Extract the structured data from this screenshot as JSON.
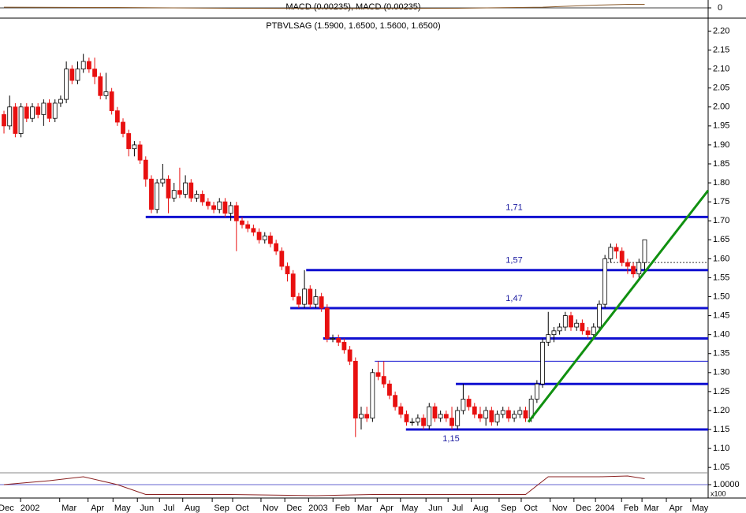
{
  "chart_data": [
    {
      "type": "line",
      "title": "MACD (0.00235), MACD (0.00235)",
      "x": [
        0,
        20,
        40,
        60,
        80,
        95,
        100,
        105,
        110,
        113
      ],
      "values": [
        0.2,
        0.1,
        -0.1,
        -0.2,
        -0.1,
        0.2,
        0.5,
        0.8,
        1.0,
        1.0
      ],
      "color": "#8a5a2a",
      "ylim": [
        -2,
        2
      ],
      "yticks": [
        0
      ]
    },
    {
      "type": "candlestick",
      "title": "PTBVLSAG (1.5900, 1.6500, 1.5600, 1.6500)",
      "open": [
        1.98,
        1.95,
        2.0,
        1.93,
        2.0,
        1.97,
        2.0,
        1.98,
        2.01,
        1.97,
        2.01,
        2.02,
        2.1,
        2.07,
        2.1,
        2.12,
        2.1,
        2.08,
        2.03,
        2.04,
        1.99,
        1.96,
        1.93,
        1.89,
        1.9,
        1.86,
        1.81,
        1.73,
        1.8,
        1.81,
        1.76,
        1.78,
        1.77,
        1.8,
        1.76,
        1.77,
        1.75,
        1.74,
        1.73,
        1.75,
        1.72,
        1.74,
        1.7,
        1.69,
        1.68,
        1.67,
        1.65,
        1.66,
        1.64,
        1.62,
        1.58,
        1.56,
        1.5,
        1.48,
        1.52,
        1.48,
        1.5,
        1.47,
        1.39,
        1.39,
        1.38,
        1.36,
        1.33,
        1.18,
        1.19,
        1.18,
        1.3,
        1.29,
        1.27,
        1.24,
        1.21,
        1.19,
        1.17,
        1.17,
        1.18,
        1.16,
        1.21,
        1.18,
        1.19,
        1.18,
        1.16,
        1.2,
        1.23,
        1.21,
        1.19,
        1.18,
        1.2,
        1.17,
        1.19,
        1.2,
        1.18,
        1.19,
        1.2,
        1.18,
        1.23,
        1.27,
        1.38,
        1.4,
        1.41,
        1.42,
        1.45,
        1.42,
        1.43,
        1.41,
        1.4,
        1.42,
        1.48,
        1.6,
        1.63,
        1.62,
        1.59,
        1.58,
        1.56,
        1.59
      ],
      "high": [
        1.99,
        2.03,
        2.01,
        2.01,
        2.01,
        2.01,
        2.01,
        2.02,
        2.02,
        2.02,
        2.03,
        2.12,
        2.11,
        2.12,
        2.14,
        2.13,
        2.13,
        2.09,
        2.09,
        2.05,
        2.0,
        1.97,
        1.94,
        1.91,
        1.91,
        1.87,
        1.82,
        1.81,
        1.85,
        1.82,
        1.8,
        1.84,
        1.82,
        1.81,
        1.78,
        1.78,
        1.76,
        1.75,
        1.76,
        1.76,
        1.75,
        1.75,
        1.71,
        1.7,
        1.69,
        1.68,
        1.67,
        1.67,
        1.65,
        1.63,
        1.59,
        1.57,
        1.51,
        1.57,
        1.53,
        1.52,
        1.51,
        1.48,
        1.4,
        1.4,
        1.39,
        1.37,
        1.34,
        1.21,
        1.21,
        1.31,
        1.33,
        1.33,
        1.28,
        1.25,
        1.22,
        1.2,
        1.18,
        1.19,
        1.19,
        1.22,
        1.22,
        1.2,
        1.2,
        1.21,
        1.21,
        1.27,
        1.24,
        1.22,
        1.21,
        1.21,
        1.21,
        1.2,
        1.21,
        1.21,
        1.2,
        1.21,
        1.21,
        1.24,
        1.28,
        1.39,
        1.46,
        1.42,
        1.43,
        1.46,
        1.46,
        1.44,
        1.44,
        1.42,
        1.43,
        1.49,
        1.61,
        1.64,
        1.64,
        1.63,
        1.6,
        1.59,
        1.6,
        1.65
      ],
      "low": [
        1.93,
        1.94,
        1.92,
        1.92,
        1.96,
        1.96,
        1.97,
        1.95,
        1.96,
        1.96,
        2.0,
        2.01,
        2.06,
        2.06,
        2.09,
        2.09,
        2.06,
        2.02,
        2.02,
        1.98,
        1.95,
        1.92,
        1.87,
        1.87,
        1.85,
        1.79,
        1.72,
        1.72,
        1.79,
        1.72,
        1.75,
        1.76,
        1.76,
        1.75,
        1.75,
        1.74,
        1.73,
        1.72,
        1.72,
        1.71,
        1.7,
        1.62,
        1.68,
        1.67,
        1.66,
        1.64,
        1.64,
        1.63,
        1.61,
        1.57,
        1.54,
        1.49,
        1.47,
        1.47,
        1.47,
        1.47,
        1.46,
        1.38,
        1.38,
        1.37,
        1.35,
        1.32,
        1.13,
        1.15,
        1.17,
        1.17,
        1.28,
        1.26,
        1.23,
        1.2,
        1.18,
        1.16,
        1.16,
        1.16,
        1.15,
        1.15,
        1.17,
        1.17,
        1.17,
        1.15,
        1.15,
        1.19,
        1.2,
        1.18,
        1.17,
        1.16,
        1.16,
        1.16,
        1.18,
        1.17,
        1.17,
        1.18,
        1.17,
        1.17,
        1.22,
        1.26,
        1.37,
        1.38,
        1.4,
        1.41,
        1.41,
        1.41,
        1.4,
        1.39,
        1.39,
        1.41,
        1.47,
        1.59,
        1.6,
        1.58,
        1.56,
        1.55,
        1.55,
        1.56
      ],
      "close": [
        1.95,
        2.0,
        1.93,
        2.0,
        1.97,
        2.0,
        1.98,
        2.01,
        1.97,
        2.01,
        2.02,
        2.1,
        2.07,
        2.1,
        2.12,
        2.1,
        2.08,
        2.03,
        2.04,
        1.99,
        1.96,
        1.93,
        1.89,
        1.9,
        1.86,
        1.81,
        1.73,
        1.8,
        1.81,
        1.76,
        1.78,
        1.77,
        1.8,
        1.76,
        1.77,
        1.75,
        1.74,
        1.73,
        1.75,
        1.72,
        1.74,
        1.7,
        1.69,
        1.68,
        1.67,
        1.65,
        1.66,
        1.64,
        1.62,
        1.58,
        1.56,
        1.5,
        1.48,
        1.52,
        1.48,
        1.5,
        1.47,
        1.39,
        1.39,
        1.38,
        1.36,
        1.33,
        1.18,
        1.19,
        1.18,
        1.3,
        1.29,
        1.27,
        1.24,
        1.21,
        1.19,
        1.17,
        1.17,
        1.18,
        1.16,
        1.21,
        1.18,
        1.19,
        1.18,
        1.16,
        1.2,
        1.23,
        1.21,
        1.19,
        1.18,
        1.2,
        1.17,
        1.19,
        1.2,
        1.18,
        1.19,
        1.2,
        1.18,
        1.23,
        1.27,
        1.38,
        1.4,
        1.41,
        1.42,
        1.45,
        1.42,
        1.43,
        1.41,
        1.4,
        1.42,
        1.48,
        1.6,
        1.63,
        1.62,
        1.59,
        1.58,
        1.56,
        1.59,
        1.65
      ],
      "up_color": "#ffffff",
      "down_color": "#e81010",
      "xlim": [
        -0.7,
        124.2
      ],
      "ylim": [
        1.04,
        2.23
      ],
      "xticks": [
        {
          "value": 0.4,
          "label": "Dec"
        },
        {
          "value": 4.6,
          "label": "2002"
        },
        {
          "value": 11.5,
          "label": "Mar"
        },
        {
          "value": 16.5,
          "label": "Apr"
        },
        {
          "value": 20.9,
          "label": "May"
        },
        {
          "value": 25.2,
          "label": "Jun"
        },
        {
          "value": 29.1,
          "label": "Jul"
        },
        {
          "value": 33.2,
          "label": "Aug"
        },
        {
          "value": 38.4,
          "label": "Sep"
        },
        {
          "value": 42.0,
          "label": "Oct"
        },
        {
          "value": 47.0,
          "label": "Nov"
        },
        {
          "value": 51.2,
          "label": "Dec"
        },
        {
          "value": 55.4,
          "label": "2003"
        },
        {
          "value": 59.7,
          "label": "Feb"
        },
        {
          "value": 63.6,
          "label": "Mar"
        },
        {
          "value": 67.5,
          "label": "Apr"
        },
        {
          "value": 71.6,
          "label": "May"
        },
        {
          "value": 76.1,
          "label": "Jun"
        },
        {
          "value": 80.0,
          "label": "Jul"
        },
        {
          "value": 84.1,
          "label": "Aug"
        },
        {
          "value": 89.0,
          "label": "Sep"
        },
        {
          "value": 92.9,
          "label": "Oct"
        },
        {
          "value": 98.0,
          "label": "Nov"
        },
        {
          "value": 102.2,
          "label": "Dec"
        },
        {
          "value": 106.0,
          "label": "2004"
        },
        {
          "value": 110.6,
          "label": "Feb"
        },
        {
          "value": 114.2,
          "label": "Mar"
        },
        {
          "value": 118.5,
          "label": "Apr"
        },
        {
          "value": 122.8,
          "label": "May"
        }
      ],
      "yticks": [
        {
          "value": 2.2,
          "label": "2.20"
        },
        {
          "value": 2.15,
          "label": "2.15"
        },
        {
          "value": 2.1,
          "label": "2.10"
        },
        {
          "value": 2.05,
          "label": "2.05"
        },
        {
          "value": 2.0,
          "label": "2.00"
        },
        {
          "value": 1.95,
          "label": "1.95"
        },
        {
          "value": 1.9,
          "label": "1.90"
        },
        {
          "value": 1.85,
          "label": "1.85"
        },
        {
          "value": 1.8,
          "label": "1.80"
        },
        {
          "value": 1.75,
          "label": "1.75"
        },
        {
          "value": 1.7,
          "label": "1.70"
        },
        {
          "value": 1.65,
          "label": "1.65"
        },
        {
          "value": 1.6,
          "label": "1.60"
        },
        {
          "value": 1.55,
          "label": "1.55"
        },
        {
          "value": 1.5,
          "label": "1.50"
        },
        {
          "value": 1.45,
          "label": "1.45"
        },
        {
          "value": 1.4,
          "label": "1.40"
        },
        {
          "value": 1.35,
          "label": "1.35"
        },
        {
          "value": 1.3,
          "label": "1.30"
        },
        {
          "value": 1.25,
          "label": "1.25"
        },
        {
          "value": 1.2,
          "label": "1.20"
        },
        {
          "value": 1.15,
          "label": "1.15"
        },
        {
          "value": 1.1,
          "label": "1.10"
        },
        {
          "value": 1.05,
          "label": "1.05"
        }
      ],
      "levels": [
        {
          "value": 1.71,
          "label": "1,71",
          "from": 25.0,
          "style": "thick"
        },
        {
          "value": 1.57,
          "label": "1,57",
          "from": 53.3,
          "style": "thick"
        },
        {
          "value": 1.47,
          "label": "1,47",
          "from": 50.5,
          "style": "thick"
        },
        {
          "value": 1.39,
          "from": 56.3,
          "style": "thick"
        },
        {
          "value": 1.27,
          "from": 79.7,
          "style": "thick"
        },
        {
          "value": 1.15,
          "label": "1,15",
          "from": 70.9,
          "style": "thick"
        },
        {
          "value": 1.33,
          "from": 65.4,
          "style": "thin"
        },
        {
          "value": 1.59,
          "from": 106.4,
          "style": "dotted"
        }
      ],
      "level_color": "#1010d0",
      "trendline": {
        "from": [
          92.5,
          1.17
        ],
        "to": [
          124.2,
          1.78
        ],
        "color": "#109010"
      }
    },
    {
      "type": "line",
      "x": [
        0,
        8,
        14,
        20,
        25,
        40,
        55,
        65,
        80,
        92,
        96,
        105,
        110,
        113
      ],
      "values": [
        1.0,
        1.01,
        1.02,
        1.0,
        0.975,
        0.975,
        0.972,
        0.975,
        0.975,
        0.975,
        1.02,
        1.02,
        1.022,
        1.015
      ],
      "color": "#8a2020",
      "ylim": [
        0.97,
        1.03
      ],
      "yticks": [
        {
          "value": 1,
          "label": "1.0000"
        }
      ],
      "scale_label": "x100"
    }
  ]
}
